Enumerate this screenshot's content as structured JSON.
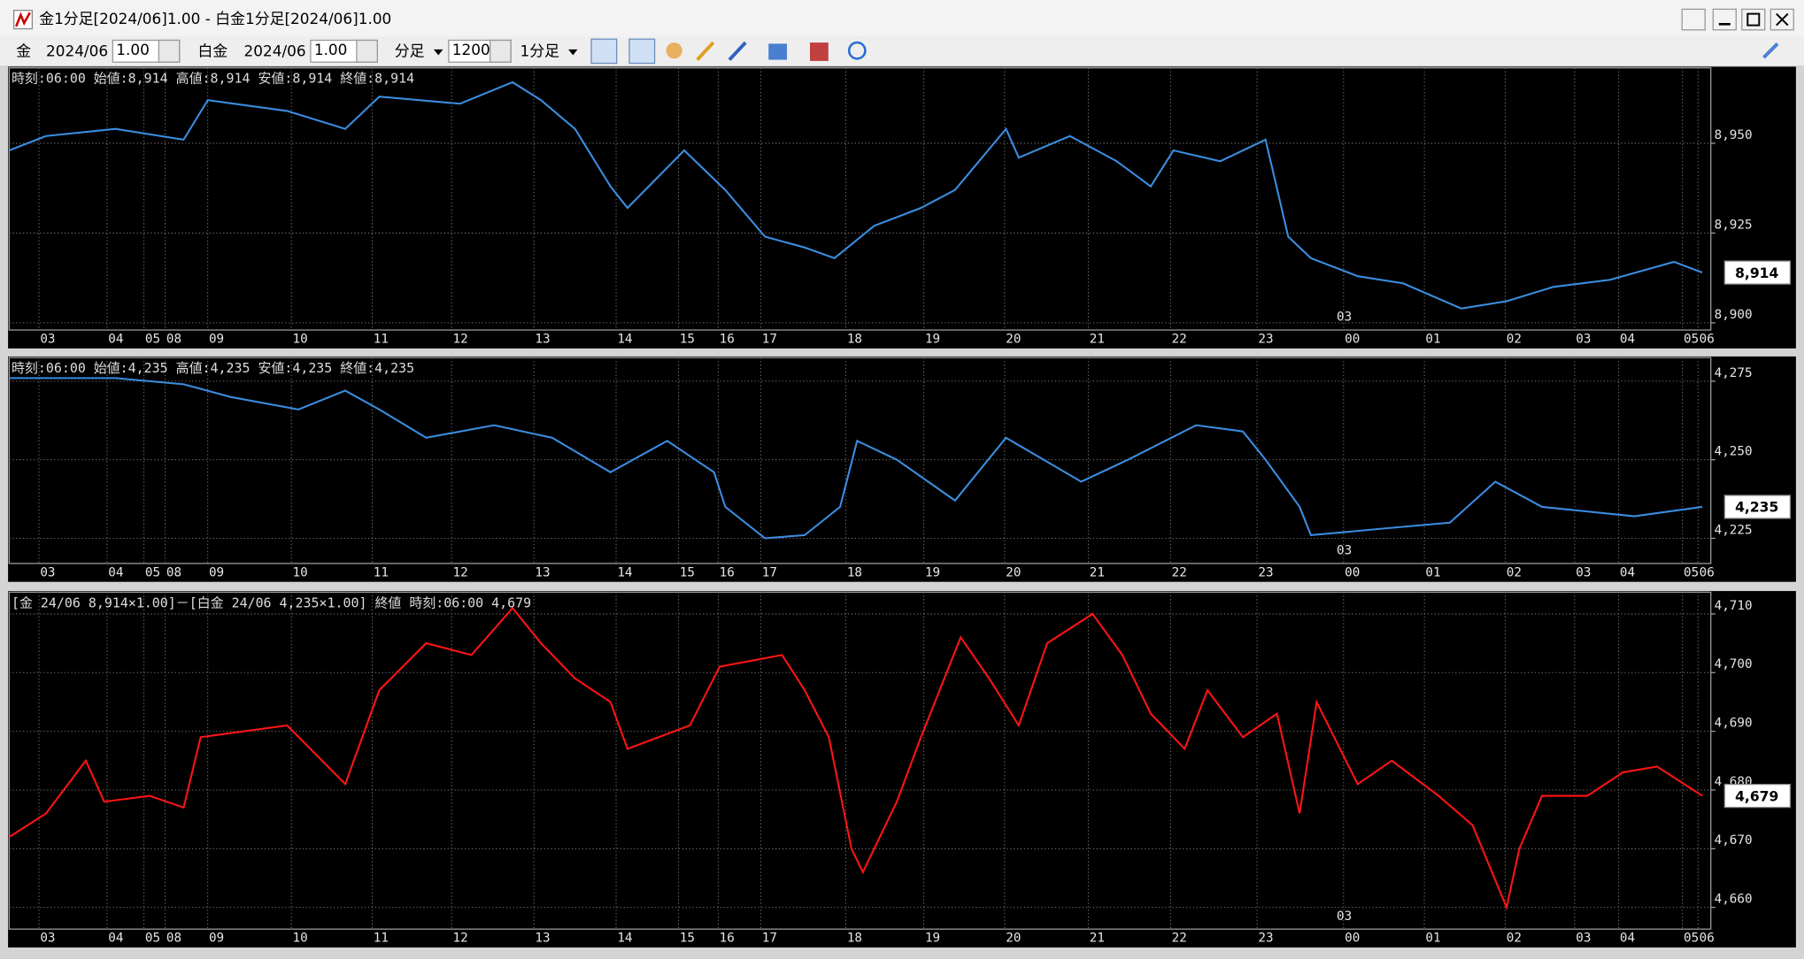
{
  "window": {
    "title": "金1分足[2024/06]1.00 - 白金1分足[2024/06]1.00"
  },
  "toolbar": {
    "instrument1": "金",
    "contract1": "2024/06",
    "ratio1": "1.00",
    "instrument2": "白金",
    "contract2": "2024/06",
    "ratio2": "1.00",
    "bar_unit": "分足",
    "bar_count": "1200",
    "period": "1分足"
  },
  "chart_data": [
    {
      "type": "line",
      "header": "時刻:06:00 始値:8,914 高値:8,914 安値:8,914 終値:8,914",
      "current_label": "8,914",
      "annotation": "03",
      "x": [
        0,
        26,
        75,
        123,
        140,
        196,
        237,
        261,
        318,
        355,
        375,
        399,
        424,
        436,
        476,
        505,
        533,
        561,
        582,
        610,
        643,
        667,
        703,
        712,
        748,
        781,
        805,
        821,
        854,
        886,
        902,
        918,
        951,
        983,
        1024,
        1056,
        1089,
        1129,
        1174,
        1194
      ],
      "series": [
        {
          "color": "#3b8de0",
          "values": [
            8948,
            8952,
            8954,
            8951,
            8962,
            8959,
            8954,
            8963,
            8961,
            8967,
            8962,
            8954,
            8938,
            8932,
            8948,
            8937,
            8924,
            8921,
            8918,
            8927,
            8932,
            8937,
            8954,
            8946,
            8952,
            8945,
            8938,
            8948,
            8945,
            8951,
            8924,
            8918,
            8913,
            8911,
            8904,
            8906,
            8910,
            8912,
            8917,
            8914
          ]
        }
      ],
      "xlim": [
        0,
        1200
      ],
      "ylim": [
        8898,
        8971
      ],
      "yticks": [
        {
          "value": 8900,
          "label": "8,900"
        },
        {
          "value": 8925,
          "label": "8,925"
        },
        {
          "value": 8950,
          "label": "8,950"
        }
      ],
      "xticks": [
        {
          "value": 21,
          "label": "03"
        },
        {
          "value": 69,
          "label": "04"
        },
        {
          "value": 95,
          "label": "05"
        },
        {
          "value": 110,
          "label": "08"
        },
        {
          "value": 140,
          "label": "09"
        },
        {
          "value": 199,
          "label": "10"
        },
        {
          "value": 256,
          "label": "11"
        },
        {
          "value": 312,
          "label": "12"
        },
        {
          "value": 370,
          "label": "13"
        },
        {
          "value": 428,
          "label": "14"
        },
        {
          "value": 472,
          "label": "15"
        },
        {
          "value": 500,
          "label": "16"
        },
        {
          "value": 530,
          "label": "17"
        },
        {
          "value": 590,
          "label": "18"
        },
        {
          "value": 645,
          "label": "19"
        },
        {
          "value": 702,
          "label": "20"
        },
        {
          "value": 761,
          "label": "21"
        },
        {
          "value": 819,
          "label": "22"
        },
        {
          "value": 880,
          "label": "23"
        },
        {
          "value": 941,
          "label": "00"
        },
        {
          "value": 998,
          "label": "01"
        },
        {
          "value": 1055,
          "label": "02"
        },
        {
          "value": 1104,
          "label": "03"
        },
        {
          "value": 1135,
          "label": "04"
        },
        {
          "value": 1180,
          "label": "05"
        },
        {
          "value": 1191,
          "label": "06"
        }
      ],
      "grid": true
    },
    {
      "type": "line",
      "header": "時刻:06:00 始値:4,235 高値:4,235 安値:4,235 終値:4,235",
      "current_label": "4,235",
      "annotation": "03",
      "x": [
        0,
        75,
        123,
        156,
        204,
        237,
        261,
        294,
        342,
        383,
        424,
        464,
        497,
        505,
        533,
        561,
        586,
        598,
        626,
        667,
        703,
        756,
        789,
        837,
        870,
        886,
        910,
        918,
        967,
        1016,
        1048,
        1081,
        1146,
        1194
      ],
      "series": [
        {
          "color": "#3b8de0",
          "values": [
            4276,
            4276,
            4274,
            4270,
            4266,
            4272,
            4266,
            4257,
            4261,
            4257,
            4246,
            4256,
            4246,
            4235,
            4225,
            4226,
            4235,
            4256,
            4250,
            4237,
            4257,
            4243,
            4250,
            4261,
            4259,
            4250,
            4235,
            4226,
            4228,
            4230,
            4243,
            4235,
            4232,
            4235
          ]
        }
      ],
      "xlim": [
        0,
        1200
      ],
      "ylim": [
        4217,
        4282.5
      ],
      "yticks": [
        {
          "value": 4225,
          "label": "4,225"
        },
        {
          "value": 4250,
          "label": "4,250"
        },
        {
          "value": 4275,
          "label": "4,275"
        }
      ],
      "xticks": [
        {
          "value": 21,
          "label": "03"
        },
        {
          "value": 69,
          "label": "04"
        },
        {
          "value": 95,
          "label": "05"
        },
        {
          "value": 110,
          "label": "08"
        },
        {
          "value": 140,
          "label": "09"
        },
        {
          "value": 199,
          "label": "10"
        },
        {
          "value": 256,
          "label": "11"
        },
        {
          "value": 312,
          "label": "12"
        },
        {
          "value": 370,
          "label": "13"
        },
        {
          "value": 428,
          "label": "14"
        },
        {
          "value": 472,
          "label": "15"
        },
        {
          "value": 500,
          "label": "16"
        },
        {
          "value": 530,
          "label": "17"
        },
        {
          "value": 590,
          "label": "18"
        },
        {
          "value": 645,
          "label": "19"
        },
        {
          "value": 702,
          "label": "20"
        },
        {
          "value": 761,
          "label": "21"
        },
        {
          "value": 819,
          "label": "22"
        },
        {
          "value": 880,
          "label": "23"
        },
        {
          "value": 941,
          "label": "00"
        },
        {
          "value": 998,
          "label": "01"
        },
        {
          "value": 1055,
          "label": "02"
        },
        {
          "value": 1104,
          "label": "03"
        },
        {
          "value": 1135,
          "label": "04"
        },
        {
          "value": 1180,
          "label": "05"
        },
        {
          "value": 1191,
          "label": "06"
        }
      ],
      "grid": true
    },
    {
      "type": "line",
      "header": "[金 24/06 8,914×1.00]－[白金 24/06 4,235×1.00] 終値 時刻:06:00 4,679",
      "current_label": "4,679",
      "annotation": "03",
      "x": [
        0,
        26,
        54,
        67,
        99,
        123,
        135,
        196,
        237,
        261,
        294,
        326,
        355,
        375,
        399,
        424,
        436,
        480,
        501,
        545,
        561,
        578,
        594,
        602,
        626,
        643,
        671,
        691,
        712,
        732,
        764,
        785,
        805,
        829,
        845,
        870,
        894,
        910,
        922,
        951,
        975,
        1008,
        1032,
        1056,
        1065,
        1081,
        1113,
        1138,
        1162,
        1194
      ],
      "series": [
        {
          "color": "#ff1414",
          "values": [
            4672,
            4676,
            4685,
            4678,
            4679,
            4677,
            4689,
            4691,
            4681,
            4697,
            4705,
            4703,
            4711,
            4705,
            4699,
            4695,
            4687,
            4691,
            4701,
            4703,
            4697,
            4689,
            4670,
            4666,
            4678,
            4689,
            4706,
            4699,
            4691,
            4705,
            4710,
            4703,
            4693,
            4687,
            4697,
            4689,
            4693,
            4676,
            4695,
            4681,
            4685,
            4679,
            4674,
            4660,
            4670,
            4679,
            4679,
            4683,
            4684,
            4679
          ]
        }
      ],
      "xlim": [
        0,
        1200
      ],
      "ylim": [
        4656.3,
        4713.7
      ],
      "yticks": [
        {
          "value": 4660,
          "label": "4,660"
        },
        {
          "value": 4670,
          "label": "4,670"
        },
        {
          "value": 4680,
          "label": "4,680"
        },
        {
          "value": 4690,
          "label": "4,690"
        },
        {
          "value": 4700,
          "label": "4,700"
        },
        {
          "value": 4710,
          "label": "4,710"
        }
      ],
      "xticks": [
        {
          "value": 21,
          "label": "03"
        },
        {
          "value": 69,
          "label": "04"
        },
        {
          "value": 95,
          "label": "05"
        },
        {
          "value": 110,
          "label": "08"
        },
        {
          "value": 140,
          "label": "09"
        },
        {
          "value": 199,
          "label": "10"
        },
        {
          "value": 256,
          "label": "11"
        },
        {
          "value": 312,
          "label": "12"
        },
        {
          "value": 370,
          "label": "13"
        },
        {
          "value": 428,
          "label": "14"
        },
        {
          "value": 472,
          "label": "15"
        },
        {
          "value": 500,
          "label": "16"
        },
        {
          "value": 530,
          "label": "17"
        },
        {
          "value": 590,
          "label": "18"
        },
        {
          "value": 645,
          "label": "19"
        },
        {
          "value": 702,
          "label": "20"
        },
        {
          "value": 761,
          "label": "21"
        },
        {
          "value": 819,
          "label": "22"
        },
        {
          "value": 880,
          "label": "23"
        },
        {
          "value": 941,
          "label": "00"
        },
        {
          "value": 998,
          "label": "01"
        },
        {
          "value": 1055,
          "label": "02"
        },
        {
          "value": 1104,
          "label": "03"
        },
        {
          "value": 1135,
          "label": "04"
        },
        {
          "value": 1180,
          "label": "05"
        },
        {
          "value": 1191,
          "label": "06"
        }
      ],
      "grid": true
    }
  ]
}
